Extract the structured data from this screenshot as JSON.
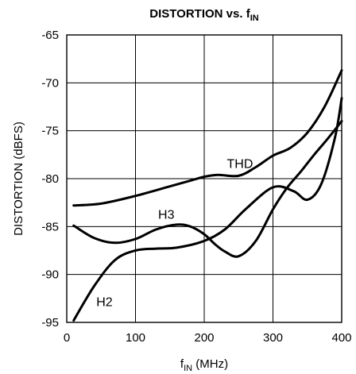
{
  "chart_data": {
    "type": "line",
    "title": {
      "main": "DISTORTION vs. f",
      "sub": "IN"
    },
    "xlabel": {
      "main": "f",
      "sub": "IN",
      "rest": " (MHz)"
    },
    "ylabel": "DISTORTION (dBFS)",
    "xlim": [
      0,
      400
    ],
    "ylim": [
      -95,
      -65
    ],
    "xticks": [
      0,
      100,
      200,
      300,
      400
    ],
    "yticks": [
      -65,
      -70,
      -75,
      -80,
      -85,
      -90,
      -95
    ],
    "xtick_labels": [
      "0",
      "100",
      "200",
      "300",
      "400"
    ],
    "ytick_labels": [
      "-65",
      "-70",
      "-75",
      "-80",
      "-85",
      "-90",
      "-95"
    ],
    "grid": true,
    "series": [
      {
        "name": "THD",
        "x": [
          10,
          50,
          100,
          150,
          180,
          200,
          220,
          250,
          275,
          300,
          325,
          350,
          375,
          400
        ],
        "y": [
          -82.8,
          -82.6,
          -81.8,
          -80.8,
          -80.2,
          -79.8,
          -79.6,
          -79.7,
          -78.8,
          -77.6,
          -76.8,
          -75.2,
          -72.5,
          -68.7
        ]
      },
      {
        "name": "H3",
        "x": [
          10,
          40,
          70,
          100,
          130,
          160,
          180,
          200,
          215,
          230,
          250,
          275,
          300,
          320,
          340,
          360,
          380,
          400
        ],
        "y": [
          -84.9,
          -86.2,
          -86.7,
          -86.3,
          -85.3,
          -84.8,
          -85.0,
          -85.8,
          -86.8,
          -87.6,
          -88.1,
          -86.5,
          -83.2,
          -81.0,
          -79.3,
          -77.5,
          -75.8,
          -74.0
        ]
      },
      {
        "name": "H2",
        "x": [
          10,
          40,
          70,
          100,
          130,
          160,
          200,
          230,
          260,
          300,
          330,
          350,
          370,
          390,
          400
        ],
        "y": [
          -94.8,
          -91.2,
          -88.5,
          -87.5,
          -87.3,
          -87.2,
          -86.5,
          -85.3,
          -83.2,
          -80.9,
          -81.3,
          -82.2,
          -80.6,
          -75.8,
          -71.6
        ]
      }
    ],
    "series_labels": [
      {
        "text": "THD",
        "x": 233,
        "y": -78.9
      },
      {
        "text": "H3",
        "x": 133,
        "y": -84.2
      },
      {
        "text": "H2",
        "x": 43,
        "y": -93.3
      }
    ]
  }
}
